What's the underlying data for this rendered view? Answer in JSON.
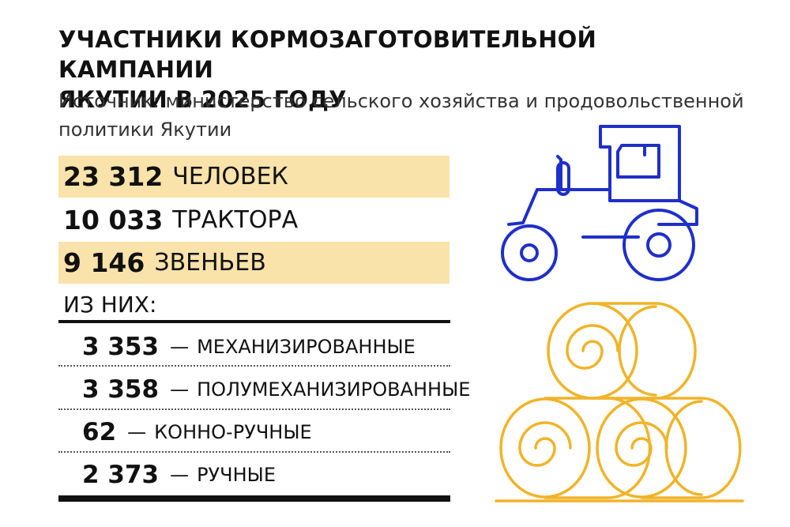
{
  "title": {
    "line1": "УЧАСТНИКИ КОРМОЗАГОТОВИТЕЛЬНОЙ КАМПАНИИ",
    "line2": "ЯКУТИИ В 2025 ГОДУ"
  },
  "source": "Источник: министерство сельского хозяйства и продовольственной политики Якутии",
  "stats": [
    {
      "number": "23 312",
      "unit": "ЧЕЛОВЕК"
    },
    {
      "number": "10 033",
      "unit": "ТРАКТОРА"
    },
    {
      "number": "9 146",
      "unit": "ЗВЕНЬЕВ"
    }
  ],
  "breakdown": {
    "heading": "ИЗ НИХ:",
    "items": [
      {
        "number": "3 353",
        "dash": "—",
        "label": "МЕХАНИЗИРОВАННЫЕ"
      },
      {
        "number": "3 358",
        "dash": "—",
        "label": "ПОЛУМЕХАНИЗИРОВАННЫЕ"
      },
      {
        "number": "62",
        "dash": "—",
        "label": "КОННО-РУЧНЫЕ"
      },
      {
        "number": "2 373",
        "dash": "—",
        "label": "РУЧНЫЕ"
      }
    ]
  },
  "colors": {
    "highlight": "#f9e3aa",
    "tractor": "#1f2fc9",
    "hay": "#f0b429",
    "text": "#111111"
  },
  "icons": [
    "tractor-icon",
    "hay-bales-icon"
  ]
}
